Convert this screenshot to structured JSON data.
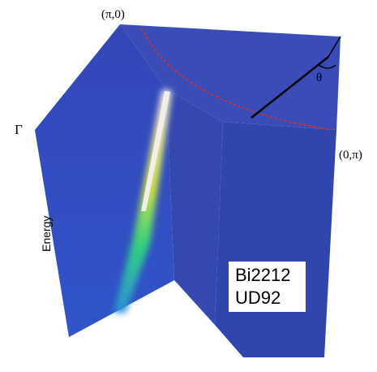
{
  "labels": {
    "top": "(π,0)",
    "left": "Γ",
    "right": "(0,π)",
    "angle": "θ",
    "axis": "Energy"
  },
  "legend": {
    "lines": [
      "Bi2212",
      "UD92"
    ]
  }
}
